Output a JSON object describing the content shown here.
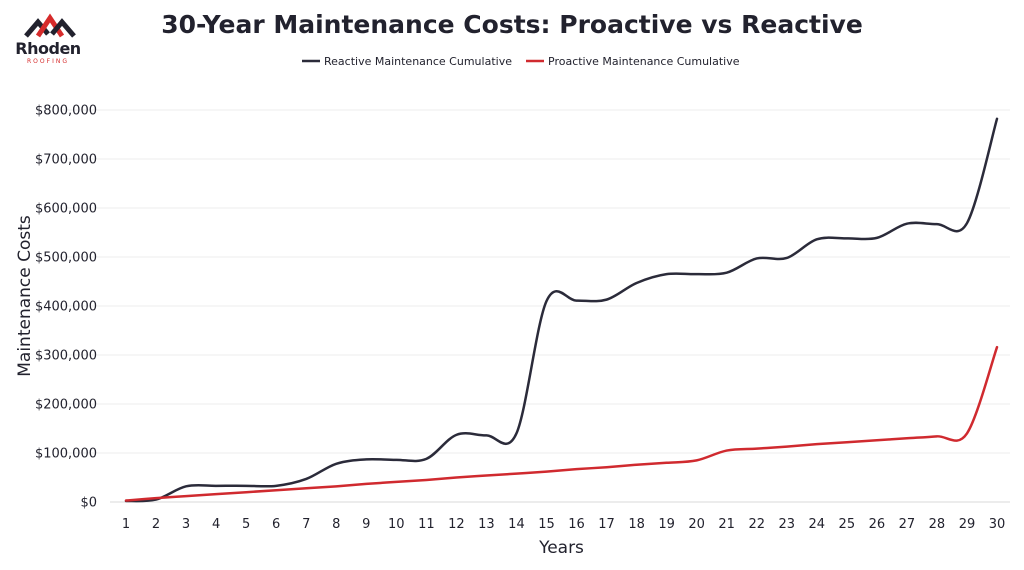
{
  "logo": {
    "brand": "Rhoden",
    "sub": "ROOFING",
    "colors": {
      "dark": "#22222e",
      "red": "#d62b2b"
    }
  },
  "chart_data": {
    "type": "line",
    "title": "30-Year Maintenance Costs: Proactive vs Reactive",
    "xlabel": "Years",
    "ylabel": "Maintenance Costs",
    "x": [
      1,
      2,
      3,
      4,
      5,
      6,
      7,
      8,
      9,
      10,
      11,
      12,
      13,
      14,
      15,
      16,
      17,
      18,
      19,
      20,
      21,
      22,
      23,
      24,
      25,
      26,
      27,
      28,
      29,
      30
    ],
    "ylim": [
      0,
      800000
    ],
    "yticks": [
      0,
      100000,
      200000,
      300000,
      400000,
      500000,
      600000,
      700000,
      800000
    ],
    "ytick_labels": [
      "$0",
      "$100,000",
      "$200,000",
      "$300,000",
      "$400,000",
      "$500,000",
      "$600,000",
      "$700,000",
      "$800,000"
    ],
    "grid": true,
    "legend_position": "top-center",
    "series": [
      {
        "name": "Reactive Maintenance Cumulative",
        "color": "#2b2b3a",
        "values": [
          2000,
          5000,
          32000,
          33000,
          33000,
          33000,
          47000,
          78000,
          87000,
          86000,
          88000,
          137000,
          136000,
          140000,
          410000,
          411000,
          413000,
          447000,
          465000,
          465000,
          468000,
          497000,
          498000,
          536000,
          538000,
          539000,
          568000,
          567000,
          569000,
          782000
        ]
      },
      {
        "name": "Proactive Maintenance Cumulative",
        "color": "#d02a2f",
        "values": [
          3000,
          8000,
          12000,
          16000,
          20000,
          24000,
          28000,
          32000,
          37000,
          41000,
          45000,
          50000,
          54000,
          58000,
          62000,
          67000,
          71000,
          76000,
          80000,
          85000,
          105000,
          109000,
          113000,
          118000,
          122000,
          126000,
          130000,
          134000,
          140000,
          316000
        ]
      }
    ]
  }
}
